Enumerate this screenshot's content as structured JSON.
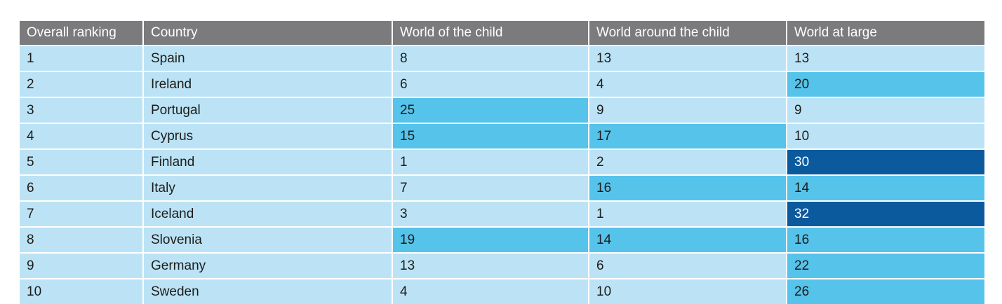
{
  "chart_data": {
    "type": "table",
    "columns": [
      "Overall ranking",
      "Country",
      "World of the child",
      "World around the child",
      "World at large"
    ],
    "rows": [
      {
        "rank": "1",
        "country": "Spain",
        "values": [
          8,
          13,
          13
        ]
      },
      {
        "rank": "2",
        "country": "Ireland",
        "values": [
          6,
          4,
          20
        ]
      },
      {
        "rank": "3",
        "country": "Portugal",
        "values": [
          25,
          9,
          9
        ]
      },
      {
        "rank": "4",
        "country": "Cyprus",
        "values": [
          15,
          17,
          10
        ]
      },
      {
        "rank": "5",
        "country": "Finland",
        "values": [
          1,
          2,
          30
        ]
      },
      {
        "rank": "6",
        "country": "Italy",
        "values": [
          7,
          16,
          14
        ]
      },
      {
        "rank": "7",
        "country": "Iceland",
        "values": [
          3,
          1,
          32
        ]
      },
      {
        "rank": "8",
        "country": "Slovenia",
        "values": [
          19,
          14,
          16
        ]
      },
      {
        "rank": "9",
        "country": "Germany",
        "values": [
          13,
          6,
          22
        ]
      },
      {
        "rank": "10",
        "country": "Sweden",
        "values": [
          4,
          10,
          26
        ]
      }
    ],
    "color_coding": {
      "low": {
        "max": 13,
        "bg": "#bce3f5",
        "text": "#1d1d1b"
      },
      "mid": {
        "min": 14,
        "max": 29,
        "bg": "#56c3eb",
        "text": "#1d1d1b"
      },
      "high": {
        "min": 30,
        "bg": "#0c5a9e",
        "text": "#ffffff"
      }
    },
    "legend_position": "none",
    "grid": "white 2px gaps between cells"
  },
  "header": {
    "bg": "#7b7b7d",
    "text_color": "#ffffff"
  }
}
